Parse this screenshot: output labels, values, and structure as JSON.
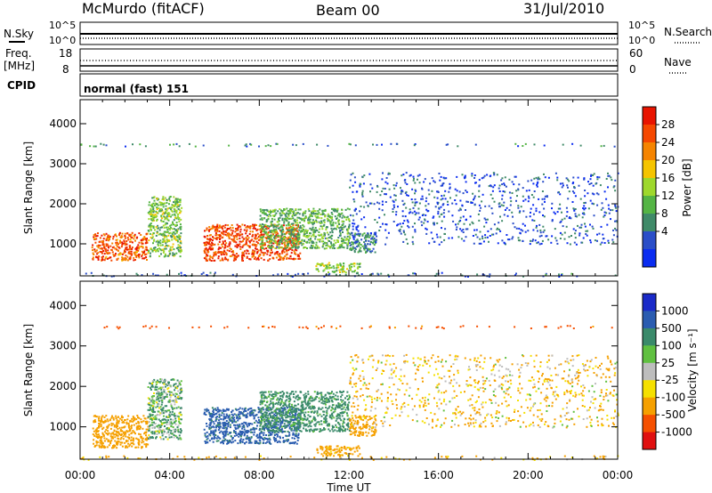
{
  "header": {
    "station": "McMurdo (fitACF)",
    "beam": "Beam 00",
    "date": "31/Jul/2010"
  },
  "panels": {
    "nsky": {
      "label": "N.Sky",
      "ticks": [
        "10^5",
        "10^0"
      ],
      "right_label": "N.Search",
      "right_ticks": [
        "10^5",
        "10^0"
      ]
    },
    "freq": {
      "label_line1": "Freq.",
      "label_line2": "[MHz]",
      "ticks": [
        "18",
        "8"
      ],
      "right_label": "Nave",
      "right_ticks": [
        "60",
        "0"
      ]
    },
    "cpid": {
      "label": "CPID",
      "mode": "normal (fast) 151"
    }
  },
  "colors": {
    "power": [
      "#0a2cf0",
      "#2a4ec8",
      "#3f8a68",
      "#54b444",
      "#9ed82c",
      "#f5c400",
      "#f58400",
      "#f54800",
      "#e81400"
    ],
    "velocity": [
      "#1a2ac8",
      "#2a5cb0",
      "#3a8a6a",
      "#60c040",
      "#bdbdbd",
      "#f5e000",
      "#f5a000",
      "#f55000",
      "#e01010"
    ]
  },
  "chart_data": [
    {
      "type": "heatmap",
      "title": "",
      "quantity": "Power",
      "xlabel": "",
      "ylabel": "Slant Range [km]",
      "xlim": [
        "00:00",
        "00:00"
      ],
      "x_ticks": [
        "00:00",
        "04:00",
        "08:00",
        "12:00",
        "16:00",
        "20:00",
        "00:00"
      ],
      "ylim": [
        200,
        4600
      ],
      "y_ticks": [
        1000,
        2000,
        3000,
        4000
      ],
      "colorbar_label": "Power [dB]",
      "colorbar_ticks": [
        "28",
        "24",
        "20",
        "16",
        "12",
        "8",
        "4"
      ],
      "colorbar_range": [
        0,
        32
      ],
      "features": [
        {
          "t": [
            0.5,
            3.0
          ],
          "range": [
            600,
            1300
          ],
          "value": 26
        },
        {
          "t": [
            3.0,
            4.5
          ],
          "range": [
            700,
            2200
          ],
          "value": 14
        },
        {
          "t": [
            5.5,
            9.8
          ],
          "range": [
            600,
            1500
          ],
          "value": 27
        },
        {
          "t": [
            8.0,
            12.0
          ],
          "range": [
            900,
            1900
          ],
          "value": 12
        },
        {
          "t": [
            12.0,
            13.2
          ],
          "range": [
            800,
            1300
          ],
          "value": 9
        },
        {
          "t": [
            10.5,
            12.5
          ],
          "range": [
            300,
            550
          ],
          "value": 15
        },
        {
          "t": [
            0.0,
            24.0
          ],
          "range": [
            200,
            300
          ],
          "value": 6
        },
        {
          "t": [
            0.0,
            24.0
          ],
          "range": [
            3450,
            3520
          ],
          "value": 8
        },
        {
          "t": [
            12.0,
            24.0
          ],
          "range": [
            1000,
            2800
          ],
          "value": 5
        }
      ]
    },
    {
      "type": "heatmap",
      "title": "",
      "quantity": "Velocity",
      "xlabel": "Time UT",
      "ylabel": "Slant Range [km]",
      "xlim": [
        "00:00",
        "00:00"
      ],
      "x_ticks": [
        "00:00",
        "04:00",
        "08:00",
        "12:00",
        "16:00",
        "20:00",
        "00:00"
      ],
      "ylim": [
        200,
        4600
      ],
      "y_ticks": [
        1000,
        2000,
        3000,
        4000
      ],
      "colorbar_label": "Velocity [m s⁻¹]",
      "colorbar_ticks": [
        "1000",
        "500",
        "100",
        "25",
        "-25",
        "-100",
        "-500",
        "-1000"
      ],
      "features": [
        {
          "t": [
            0.5,
            3.0
          ],
          "range": [
            500,
            1300
          ],
          "value": -300
        },
        {
          "t": [
            3.0,
            4.5
          ],
          "range": [
            700,
            2200
          ],
          "value": 100
        },
        {
          "t": [
            5.5,
            9.8
          ],
          "range": [
            600,
            1500
          ],
          "value": 600
        },
        {
          "t": [
            8.0,
            12.0
          ],
          "range": [
            900,
            1900
          ],
          "value": 200
        },
        {
          "t": [
            12.0,
            13.2
          ],
          "range": [
            800,
            1300
          ],
          "value": -300
        },
        {
          "t": [
            10.5,
            12.5
          ],
          "range": [
            300,
            550
          ],
          "value": -200
        },
        {
          "t": [
            0.0,
            24.0
          ],
          "range": [
            200,
            300
          ],
          "value": -150
        },
        {
          "t": [
            0.0,
            24.0
          ],
          "range": [
            3450,
            3520
          ],
          "value": -600
        },
        {
          "t": [
            12.0,
            24.0
          ],
          "range": [
            1000,
            2800
          ],
          "value": -100
        }
      ]
    }
  ]
}
